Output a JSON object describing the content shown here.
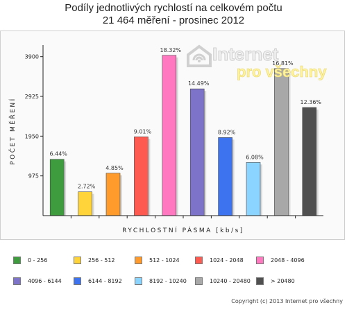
{
  "title_line1": "Podíly jednotlivých rychlostí na celkovém počtu",
  "title_line2": "21 464 měření - prosinec 2012",
  "watermark": {
    "line1": "Internet",
    "line2": "pro všechny"
  },
  "copyright": "Copyright (c) 2013 Internet pro všechny",
  "chart_data": {
    "type": "bar",
    "title": "Podíly jednotlivých rychlostí na celkovém počtu 21 464 měření - prosinec 2012",
    "xlabel": "RYCHLOSTNÍ PÁSMA [kb/s]",
    "ylabel": "POČET MĚŘENÍ",
    "yticks": [
      975,
      1950,
      2925,
      3900
    ],
    "ylim": [
      0,
      4150
    ],
    "grid": false,
    "legend_position": "bottom",
    "categories": [
      "0 - 256",
      "256 - 512",
      "512 - 1024",
      "1024 - 2048",
      "2048 - 4096",
      "4096 - 6144",
      "6144 - 8192",
      "8192 - 10240",
      "10240 - 20480",
      "> 20480"
    ],
    "values": [
      1382,
      584,
      1041,
      1934,
      3932,
      3110,
      1915,
      1305,
      3608,
      2653
    ],
    "labels": [
      "6.44%",
      "2.72%",
      "4.85%",
      "9.01%",
      "18.32%",
      "14.49%",
      "8.92%",
      "6.08%",
      "16.81%",
      "12.36%"
    ],
    "colors": [
      "#3e9b3e",
      "#ffd43a",
      "#ff9a2c",
      "#ff5a50",
      "#ff78c0",
      "#7d73c8",
      "#3e73f0",
      "#8ad4ff",
      "#a8a8a8",
      "#505050"
    ]
  }
}
